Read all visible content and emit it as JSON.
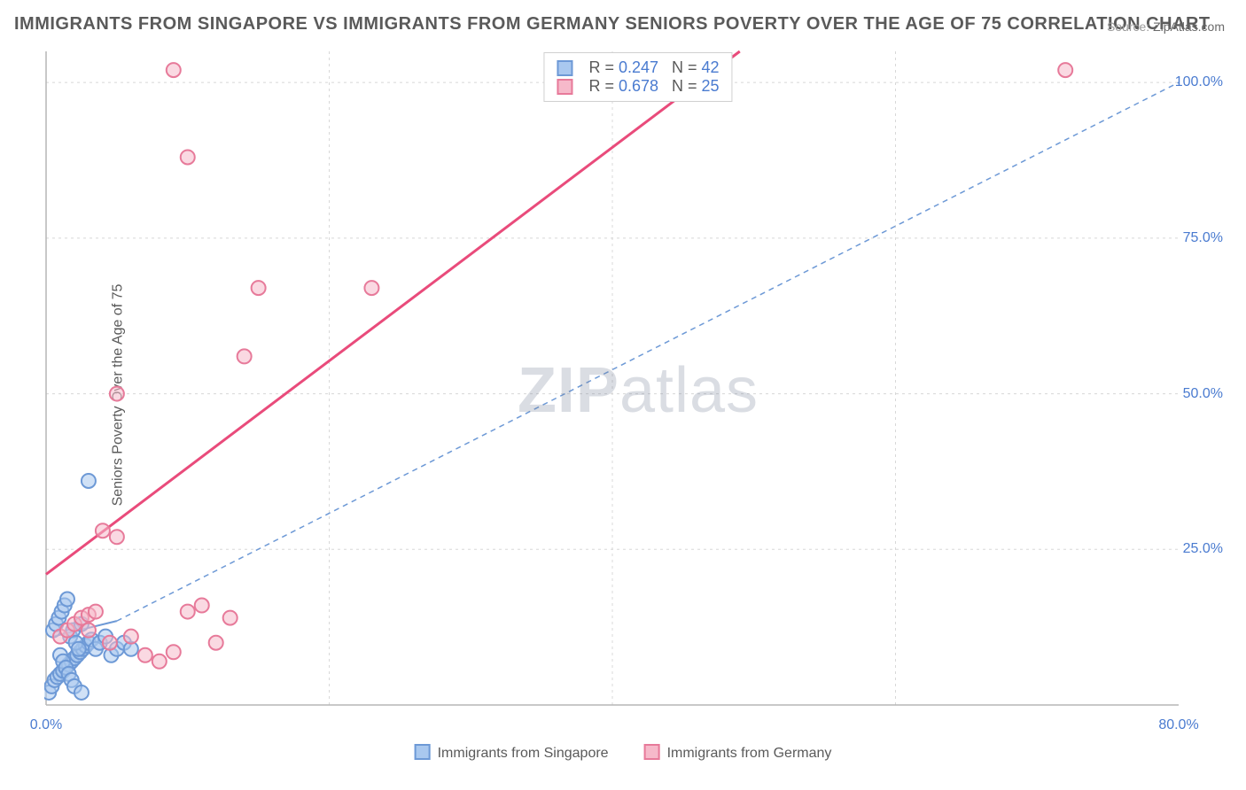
{
  "title": "IMMIGRANTS FROM SINGAPORE VS IMMIGRANTS FROM GERMANY SENIORS POVERTY OVER THE AGE OF 75 CORRELATION CHART",
  "source_label": "Source:",
  "source_value": "ZipAtlas.com",
  "ylabel": "Seniors Poverty Over the Age of 75",
  "watermark_a": "ZIP",
  "watermark_b": "atlas",
  "chart": {
    "type": "scatter",
    "xlim": [
      0,
      80
    ],
    "ylim": [
      0,
      105
    ],
    "xticks": [
      {
        "v": 0,
        "label": "0.0%"
      },
      {
        "v": 80,
        "label": "80.0%"
      }
    ],
    "yticks": [
      {
        "v": 25,
        "label": "25.0%"
      },
      {
        "v": 50,
        "label": "50.0%"
      },
      {
        "v": 75,
        "label": "75.0%"
      },
      {
        "v": 100,
        "label": "100.0%"
      }
    ],
    "grid_color": "#d8d8d8",
    "axis_color": "#b5b5b5",
    "background": "#ffffff",
    "marker_radius": 8,
    "marker_stroke_width": 2,
    "series": [
      {
        "name": "Immigrants from Singapore",
        "fill": "#a9c8ef",
        "stroke": "#6d99d6",
        "fill_opacity": 0.55,
        "R": "0.247",
        "N": "42",
        "points": [
          [
            0.2,
            2
          ],
          [
            0.4,
            3
          ],
          [
            0.6,
            4
          ],
          [
            0.8,
            4.5
          ],
          [
            1,
            5
          ],
          [
            1.2,
            5.5
          ],
          [
            1.4,
            6
          ],
          [
            1.6,
            6.5
          ],
          [
            1.8,
            7
          ],
          [
            2,
            7.5
          ],
          [
            2.2,
            8
          ],
          [
            2.4,
            8.5
          ],
          [
            2.6,
            9
          ],
          [
            2.8,
            9.5
          ],
          [
            3,
            10
          ],
          [
            3.2,
            10.5
          ],
          [
            0.5,
            12
          ],
          [
            0.7,
            13
          ],
          [
            0.9,
            14
          ],
          [
            1.1,
            15
          ],
          [
            1.3,
            16
          ],
          [
            1.5,
            17
          ],
          [
            1.7,
            11
          ],
          [
            1.9,
            12
          ],
          [
            2.1,
            10
          ],
          [
            2.3,
            9
          ],
          [
            2.5,
            13
          ],
          [
            1,
            8
          ],
          [
            1.2,
            7
          ],
          [
            1.4,
            6
          ],
          [
            1.6,
            5
          ],
          [
            1.8,
            4
          ],
          [
            2,
            3
          ],
          [
            3.5,
            9
          ],
          [
            3.8,
            10
          ],
          [
            4.2,
            11
          ],
          [
            4.6,
            8
          ],
          [
            5,
            9
          ],
          [
            5.5,
            10
          ],
          [
            6,
            9
          ],
          [
            2.5,
            2
          ],
          [
            3,
            36
          ]
        ],
        "trend": {
          "x1": 0.5,
          "y1": 11,
          "x2": 5,
          "y2": 13.5,
          "stroke": "#6d99d6",
          "width": 2
        },
        "trend_extend": {
          "x1": 5,
          "y1": 13.5,
          "x2": 80,
          "y2": 100,
          "stroke": "#6d99d6",
          "width": 1.5,
          "dash": "6,5"
        }
      },
      {
        "name": "Immigrants from Germany",
        "fill": "#f6b9ca",
        "stroke": "#e77a9a",
        "fill_opacity": 0.55,
        "R": "0.678",
        "N": "25",
        "points": [
          [
            1,
            11
          ],
          [
            1.5,
            12
          ],
          [
            2,
            13
          ],
          [
            2.5,
            14
          ],
          [
            3,
            14.5
          ],
          [
            3.5,
            15
          ],
          [
            4,
            28
          ],
          [
            5,
            27
          ],
          [
            7,
            8
          ],
          [
            8,
            7
          ],
          [
            9,
            8.5
          ],
          [
            10,
            15
          ],
          [
            11,
            16
          ],
          [
            12,
            10
          ],
          [
            13,
            14
          ],
          [
            9,
            102
          ],
          [
            10,
            88
          ],
          [
            15,
            67
          ],
          [
            23,
            67
          ],
          [
            14,
            56
          ],
          [
            5,
            50
          ],
          [
            72,
            102
          ],
          [
            3,
            12
          ],
          [
            4.5,
            10
          ],
          [
            6,
            11
          ]
        ],
        "trend": {
          "x1": 0,
          "y1": 21,
          "x2": 49,
          "y2": 105,
          "stroke": "#e94b7b",
          "width": 3
        }
      }
    ],
    "r_legend_labels": {
      "R": "R =",
      "N": "N ="
    }
  },
  "xlegend": [
    {
      "label": "Immigrants from Singapore",
      "fill": "#a9c8ef",
      "stroke": "#6d99d6"
    },
    {
      "label": "Immigrants from Germany",
      "fill": "#f6b9ca",
      "stroke": "#e77a9a"
    }
  ]
}
